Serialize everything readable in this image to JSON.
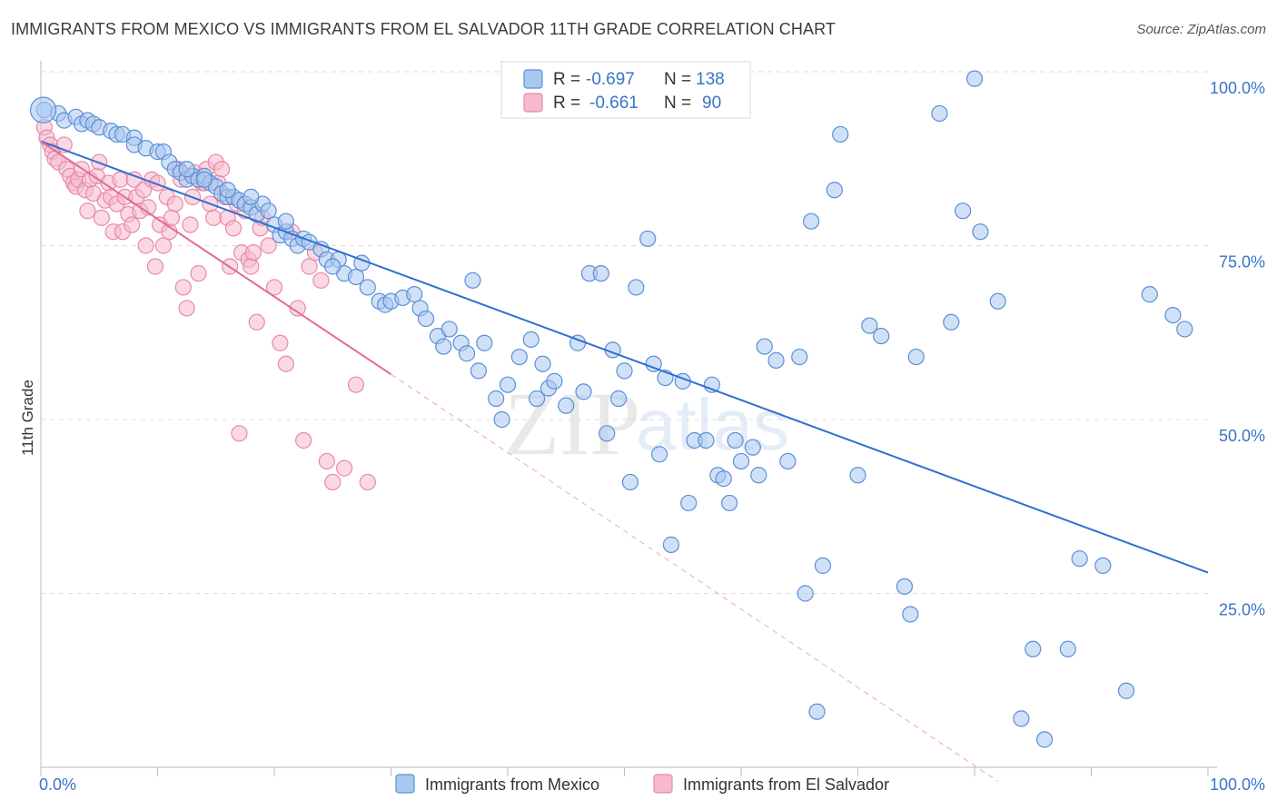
{
  "header": {
    "title": "IMMIGRANTS FROM MEXICO VS IMMIGRANTS FROM EL SALVADOR 11TH GRADE CORRELATION CHART",
    "source": "Source: ZipAtlas.com"
  },
  "watermark": {
    "zip": "ZIP",
    "atlas": "atlas"
  },
  "colors": {
    "mexico_fill": "#a9c8f0",
    "mexico_stroke": "#5b8fd6",
    "mexico_line": "#2f6fd0",
    "salvador_fill": "#f6b9cd",
    "salvador_stroke": "#e889a8",
    "salvador_line": "#e06b95",
    "grid": "#dcdcdc",
    "tick_text": "#3a74c8"
  },
  "chart_data": {
    "type": "scatter",
    "title": "IMMIGRANTS FROM MEXICO VS IMMIGRANTS FROM EL SALVADOR 11TH GRADE CORRELATION CHART",
    "xlabel": "",
    "ylabel": "11th Grade",
    "xlim": [
      0,
      100
    ],
    "ylim": [
      0,
      100
    ],
    "x_tick_labels": [
      "0.0%",
      "100.0%"
    ],
    "y_tick_labels": [
      "100.0%",
      "75.0%",
      "50.0%",
      "25.0%"
    ],
    "y_tick_values": [
      100,
      75,
      50,
      25
    ],
    "grid": "horizontal dashed",
    "legend_position": "top-center",
    "legend": [
      {
        "r_label": "R =",
        "r_value": "-0.697",
        "n_label": "N =",
        "n_value": "138"
      },
      {
        "r_label": "R =",
        "r_value": "-0.661",
        "n_label": "N =",
        "n_value": "90"
      }
    ],
    "series": [
      {
        "name": "Immigrants from Mexico",
        "r": -0.697,
        "n": 138,
        "trend": {
          "x": [
            0,
            100
          ],
          "y": [
            90,
            28
          ]
        },
        "points": [
          [
            0.3,
            94.5
          ],
          [
            1.5,
            94
          ],
          [
            2,
            93
          ],
          [
            3,
            93.5
          ],
          [
            3.5,
            92.5
          ],
          [
            4,
            93
          ],
          [
            4.5,
            92.5
          ],
          [
            5,
            92
          ],
          [
            6,
            91.5
          ],
          [
            6.5,
            91
          ],
          [
            7,
            91
          ],
          [
            8,
            90.5
          ],
          [
            8,
            89.5
          ],
          [
            9,
            89
          ],
          [
            10,
            88.5
          ],
          [
            10.5,
            88.5
          ],
          [
            11,
            87
          ],
          [
            11.5,
            86
          ],
          [
            12,
            85.5
          ],
          [
            12.5,
            84.5
          ],
          [
            13,
            85
          ],
          [
            13.5,
            84.5
          ],
          [
            14,
            85
          ],
          [
            14.5,
            84
          ],
          [
            15,
            83.5
          ],
          [
            15.5,
            82.5
          ],
          [
            16,
            82
          ],
          [
            16.5,
            82
          ],
          [
            17,
            81.5
          ],
          [
            17.5,
            81
          ],
          [
            18,
            80.5
          ],
          [
            18.5,
            79.5
          ],
          [
            19,
            81
          ],
          [
            19.5,
            80
          ],
          [
            20,
            78
          ],
          [
            20.5,
            76.5
          ],
          [
            21,
            77
          ],
          [
            21.5,
            76
          ],
          [
            22,
            75
          ],
          [
            22.5,
            76
          ],
          [
            23,
            75.5
          ],
          [
            24,
            74.5
          ],
          [
            24.5,
            73
          ],
          [
            25.5,
            73
          ],
          [
            26,
            71
          ],
          [
            27,
            70.5
          ],
          [
            27.5,
            72.5
          ],
          [
            28,
            69
          ],
          [
            29,
            67
          ],
          [
            29.5,
            66.5
          ],
          [
            30,
            67
          ],
          [
            31,
            67.5
          ],
          [
            32,
            68
          ],
          [
            32.5,
            66
          ],
          [
            33,
            64.5
          ],
          [
            34,
            62
          ],
          [
            34.5,
            60.5
          ],
          [
            35,
            63
          ],
          [
            36,
            61
          ],
          [
            36.5,
            59.5
          ],
          [
            37,
            70
          ],
          [
            37.5,
            57
          ],
          [
            38,
            61
          ],
          [
            39,
            53
          ],
          [
            39.5,
            50
          ],
          [
            40,
            55
          ],
          [
            41,
            59
          ],
          [
            42,
            61.5
          ],
          [
            42.5,
            53
          ],
          [
            43,
            58
          ],
          [
            43.5,
            54.5
          ],
          [
            44,
            55.5
          ],
          [
            45,
            52
          ],
          [
            46,
            61
          ],
          [
            46.5,
            54
          ],
          [
            47,
            71
          ],
          [
            48,
            71
          ],
          [
            48.5,
            48
          ],
          [
            49,
            60
          ],
          [
            49.5,
            53
          ],
          [
            50,
            57
          ],
          [
            50.5,
            41
          ],
          [
            51,
            69
          ],
          [
            52,
            76
          ],
          [
            52.5,
            58
          ],
          [
            53,
            45
          ],
          [
            53.5,
            56
          ],
          [
            54,
            32
          ],
          [
            55,
            55.5
          ],
          [
            55.5,
            38
          ],
          [
            56,
            47
          ],
          [
            57,
            47
          ],
          [
            57.5,
            55
          ],
          [
            58,
            42
          ],
          [
            58.5,
            41.5
          ],
          [
            59,
            38
          ],
          [
            59.5,
            47
          ],
          [
            60,
            44
          ],
          [
            61,
            46
          ],
          [
            61.5,
            42
          ],
          [
            62,
            60.5
          ],
          [
            63,
            58.5
          ],
          [
            64,
            44
          ],
          [
            65,
            59
          ],
          [
            65.5,
            25
          ],
          [
            66,
            78.5
          ],
          [
            66.5,
            8
          ],
          [
            67,
            29
          ],
          [
            68,
            83
          ],
          [
            68.5,
            91
          ],
          [
            70,
            42
          ],
          [
            71,
            63.5
          ],
          [
            72,
            62
          ],
          [
            74,
            26
          ],
          [
            74.5,
            22
          ],
          [
            75,
            59
          ],
          [
            77,
            94
          ],
          [
            78,
            64
          ],
          [
            79,
            80
          ],
          [
            80,
            99
          ],
          [
            80.5,
            77
          ],
          [
            82,
            67
          ],
          [
            84,
            7
          ],
          [
            85,
            17
          ],
          [
            86,
            4
          ],
          [
            88,
            17
          ],
          [
            89,
            30
          ],
          [
            91,
            29
          ],
          [
            93,
            11
          ],
          [
            95,
            68
          ],
          [
            97,
            65
          ],
          [
            98,
            63
          ],
          [
            12.5,
            86
          ],
          [
            14,
            84.5
          ],
          [
            16,
            83
          ],
          [
            18,
            82
          ],
          [
            21,
            78.5
          ],
          [
            25,
            72
          ]
        ]
      },
      {
        "name": "Immigrants from El Salvador",
        "r": -0.661,
        "n": 90,
        "trend": {
          "x": [
            0,
            30
          ],
          "y": [
            90,
            56.5
          ]
        },
        "trend_dashed": {
          "x": [
            30,
            82
          ],
          "y": [
            56.5,
            -2
          ]
        },
        "points": [
          [
            0.3,
            92
          ],
          [
            0.5,
            90.5
          ],
          [
            0.8,
            89.5
          ],
          [
            1,
            88.5
          ],
          [
            1.2,
            87.5
          ],
          [
            1.5,
            87
          ],
          [
            2,
            89.5
          ],
          [
            2.2,
            86
          ],
          [
            2.5,
            85
          ],
          [
            2.8,
            84
          ],
          [
            3,
            83.5
          ],
          [
            3.2,
            84.5
          ],
          [
            3.5,
            86
          ],
          [
            3.8,
            83
          ],
          [
            4,
            80
          ],
          [
            4.2,
            84.5
          ],
          [
            4.5,
            82.5
          ],
          [
            4.8,
            85
          ],
          [
            5,
            87
          ],
          [
            5.2,
            79
          ],
          [
            5.5,
            81.5
          ],
          [
            5.8,
            84
          ],
          [
            6,
            82
          ],
          [
            6.2,
            77
          ],
          [
            6.5,
            81
          ],
          [
            6.8,
            84.5
          ],
          [
            7,
            77
          ],
          [
            7.2,
            82
          ],
          [
            7.5,
            79.5
          ],
          [
            7.8,
            78
          ],
          [
            8,
            84.5
          ],
          [
            8.2,
            82
          ],
          [
            8.5,
            80
          ],
          [
            8.8,
            83
          ],
          [
            9,
            75
          ],
          [
            9.2,
            80.5
          ],
          [
            9.5,
            84.5
          ],
          [
            9.8,
            72
          ],
          [
            10,
            84
          ],
          [
            10.2,
            78
          ],
          [
            10.5,
            75
          ],
          [
            10.8,
            82
          ],
          [
            11,
            77
          ],
          [
            11.2,
            79
          ],
          [
            11.5,
            81
          ],
          [
            11.8,
            86
          ],
          [
            12,
            84.5
          ],
          [
            12.2,
            69
          ],
          [
            12.5,
            66
          ],
          [
            12.8,
            78
          ],
          [
            13,
            82
          ],
          [
            13.2,
            85.5
          ],
          [
            13.5,
            71
          ],
          [
            13.8,
            84
          ],
          [
            14,
            84
          ],
          [
            14.2,
            86
          ],
          [
            14.5,
            81
          ],
          [
            14.8,
            79
          ],
          [
            15,
            87
          ],
          [
            15.2,
            84
          ],
          [
            15.5,
            86
          ],
          [
            15.8,
            82
          ],
          [
            16,
            79
          ],
          [
            16.2,
            72
          ],
          [
            16.5,
            77.5
          ],
          [
            16.8,
            81
          ],
          [
            17,
            48
          ],
          [
            17.2,
            74
          ],
          [
            17.5,
            80
          ],
          [
            17.8,
            73
          ],
          [
            18,
            72
          ],
          [
            18.2,
            74
          ],
          [
            18.5,
            64
          ],
          [
            18.8,
            77.5
          ],
          [
            19,
            79
          ],
          [
            19.5,
            75
          ],
          [
            20,
            69
          ],
          [
            20.5,
            61
          ],
          [
            21,
            58
          ],
          [
            21.5,
            77
          ],
          [
            22,
            66
          ],
          [
            22.5,
            47
          ],
          [
            23,
            72
          ],
          [
            23.5,
            74
          ],
          [
            24,
            70
          ],
          [
            24.5,
            44
          ],
          [
            25,
            41
          ],
          [
            26,
            43
          ],
          [
            27,
            55
          ],
          [
            28,
            41
          ]
        ]
      }
    ]
  },
  "bottom_legend": {
    "mexico_label": "Immigrants from Mexico",
    "salvador_label": "Immigrants from El Salvador"
  }
}
